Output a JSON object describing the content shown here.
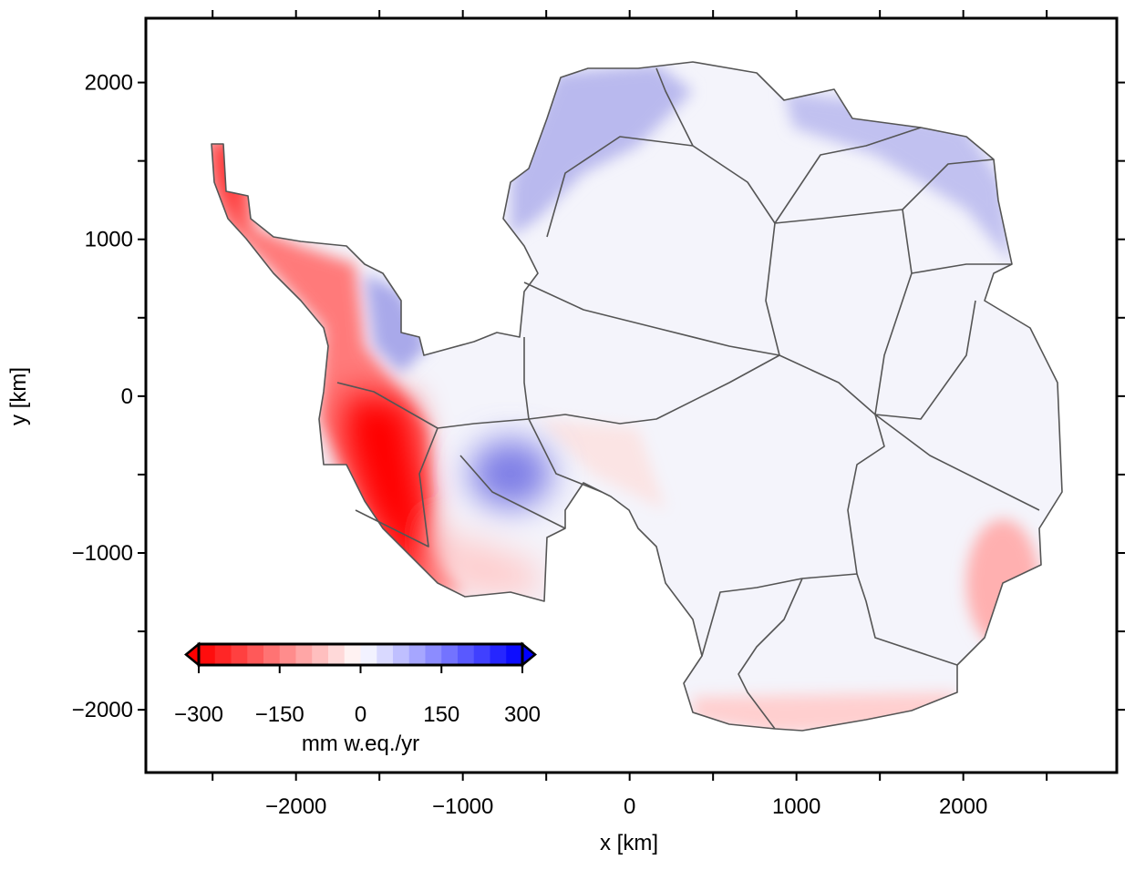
{
  "chart_data": {
    "type": "map",
    "x_label": "x [km]",
    "y_label": "y [km]",
    "xlim": [
      -2900,
      2920
    ],
    "ylim": [
      -2400,
      2410
    ],
    "xticks": [
      {
        "value": -2000,
        "label": "−2000"
      },
      {
        "value": -1000,
        "label": "−1000"
      },
      0,
      1000,
      2000
    ],
    "yticks": [
      {
        "value": -2000,
        "label": "−2000"
      },
      {
        "value": -1000,
        "label": "−1000"
      },
      0,
      1000,
      2000
    ],
    "xminorticks": [
      -2500,
      -1500,
      -500,
      500,
      1500,
      2500
    ],
    "yminorticks": [
      -1500,
      -500,
      500,
      1500
    ],
    "colorbar": {
      "label": "mm w.eq./yr",
      "clim": [
        -300,
        300
      ],
      "step": 30,
      "cmap": [
        "#ff0000",
        "#ffffff",
        "#0000ff"
      ],
      "extend": "both",
      "ticks": [
        {
          "value": -300,
          "label": "−300"
        },
        {
          "value": -150,
          "label": "−150"
        },
        0,
        150,
        300
      ]
    }
  }
}
